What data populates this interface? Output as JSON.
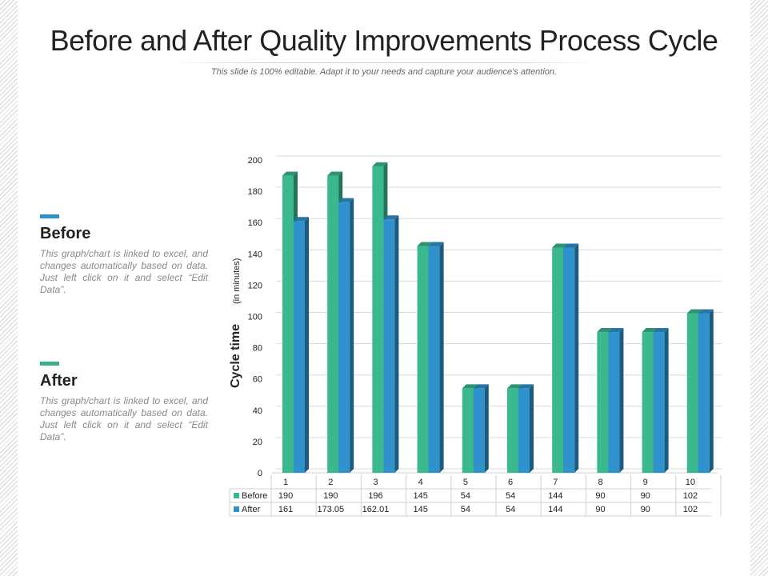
{
  "slide": {
    "title": "Before and After Quality Improvements Process Cycle",
    "subtitle": "This slide is 100% editable. Adapt it to your needs and capture your audience's attention."
  },
  "legend_blocks": [
    {
      "name": "Before",
      "color": "#3aaf8a",
      "description": "This graph/chart is linked to excel, and changes automatically based on data. Just left click on it and select “Edit Data”."
    },
    {
      "name": "After",
      "color": "#2f8fc6",
      "description": "This graph/chart is linked to excel, and changes automatically based on data. Just left click on it and select “Edit Data”."
    }
  ],
  "chart_data": {
    "type": "bar",
    "title": "",
    "xlabel": "",
    "ylabel": "Cycle time",
    "ylabel_unit": "(in minutes)",
    "ylim": [
      0,
      200
    ],
    "yticks": [
      0,
      20,
      40,
      60,
      80,
      100,
      120,
      140,
      160,
      180,
      200
    ],
    "grid": true,
    "categories": [
      "1",
      "2",
      "3",
      "4",
      "5",
      "6",
      "7",
      "8",
      "9",
      "10"
    ],
    "series": [
      {
        "name": "Before",
        "color": "#3ab88e",
        "values": [
          190,
          190,
          196,
          145,
          54,
          54,
          144,
          90,
          90,
          102
        ],
        "labels": [
          "190",
          "190",
          "196",
          "145",
          "54",
          "54",
          "144",
          "90",
          "90",
          "102"
        ]
      },
      {
        "name": "After",
        "color": "#2f92cc",
        "values": [
          161,
          173.05,
          162.01,
          145,
          54,
          54,
          144,
          90,
          90,
          102
        ],
        "labels": [
          "161",
          "173.05",
          "162.01",
          "145",
          "54",
          "54",
          "144",
          "90",
          "90",
          "102"
        ]
      }
    ]
  }
}
